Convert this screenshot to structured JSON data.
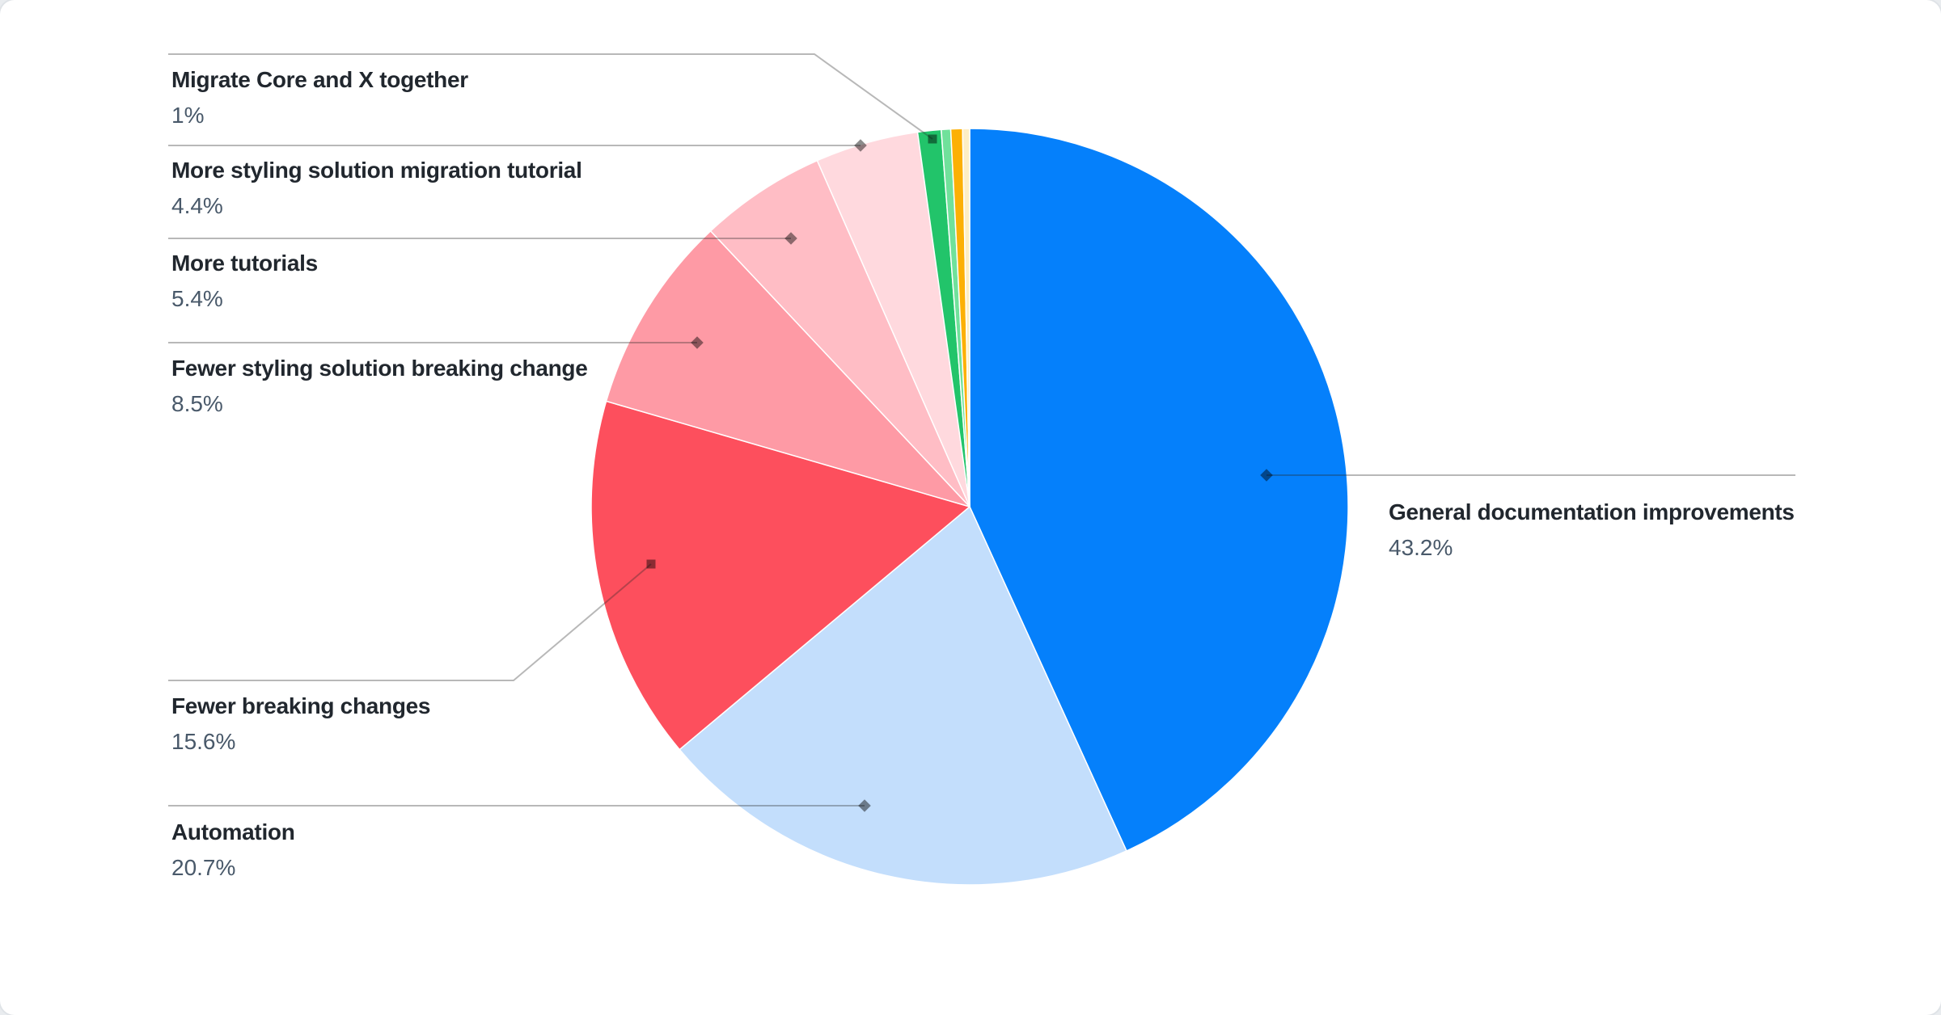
{
  "chart_data": {
    "type": "pie",
    "title": "",
    "unit": "%",
    "legend_position": "callout-labels",
    "grid": false,
    "total": 100,
    "label_title_color": "#21272e",
    "label_value_color": "#49596a",
    "leader_line_color": "#aeaeae",
    "slices": [
      {
        "label": "General documentation improvements",
        "value": 43.2,
        "pct_label": "43.2%",
        "color": "#0580FB"
      },
      {
        "label": "Automation",
        "value": 20.7,
        "pct_label": "20.7%",
        "color": "#C3DEFC"
      },
      {
        "label": "Fewer breaking changes",
        "value": 15.6,
        "pct_label": "15.6%",
        "color": "#FD4F5D"
      },
      {
        "label": "Fewer styling solution breaking change",
        "value": 8.5,
        "pct_label": "8.5%",
        "color": "#FE9AA5"
      },
      {
        "label": "More tutorials",
        "value": 5.4,
        "pct_label": "5.4%",
        "color": "#FFBDC5"
      },
      {
        "label": "More styling solution migration tutorial",
        "value": 4.4,
        "pct_label": "4.4%",
        "color": "#FFD9DE"
      },
      {
        "label": "Migrate Core and X together",
        "value": 1.0,
        "pct_label": "1%",
        "color": "#22C46A"
      },
      {
        "label": "",
        "value": 0.4,
        "pct_label": "",
        "color": "#70E19B"
      },
      {
        "label": "",
        "value": 0.5,
        "pct_label": "",
        "color": "#FCB005"
      },
      {
        "label": "",
        "value": 0.3,
        "pct_label": "",
        "color": "#FDEEC5"
      }
    ]
  }
}
